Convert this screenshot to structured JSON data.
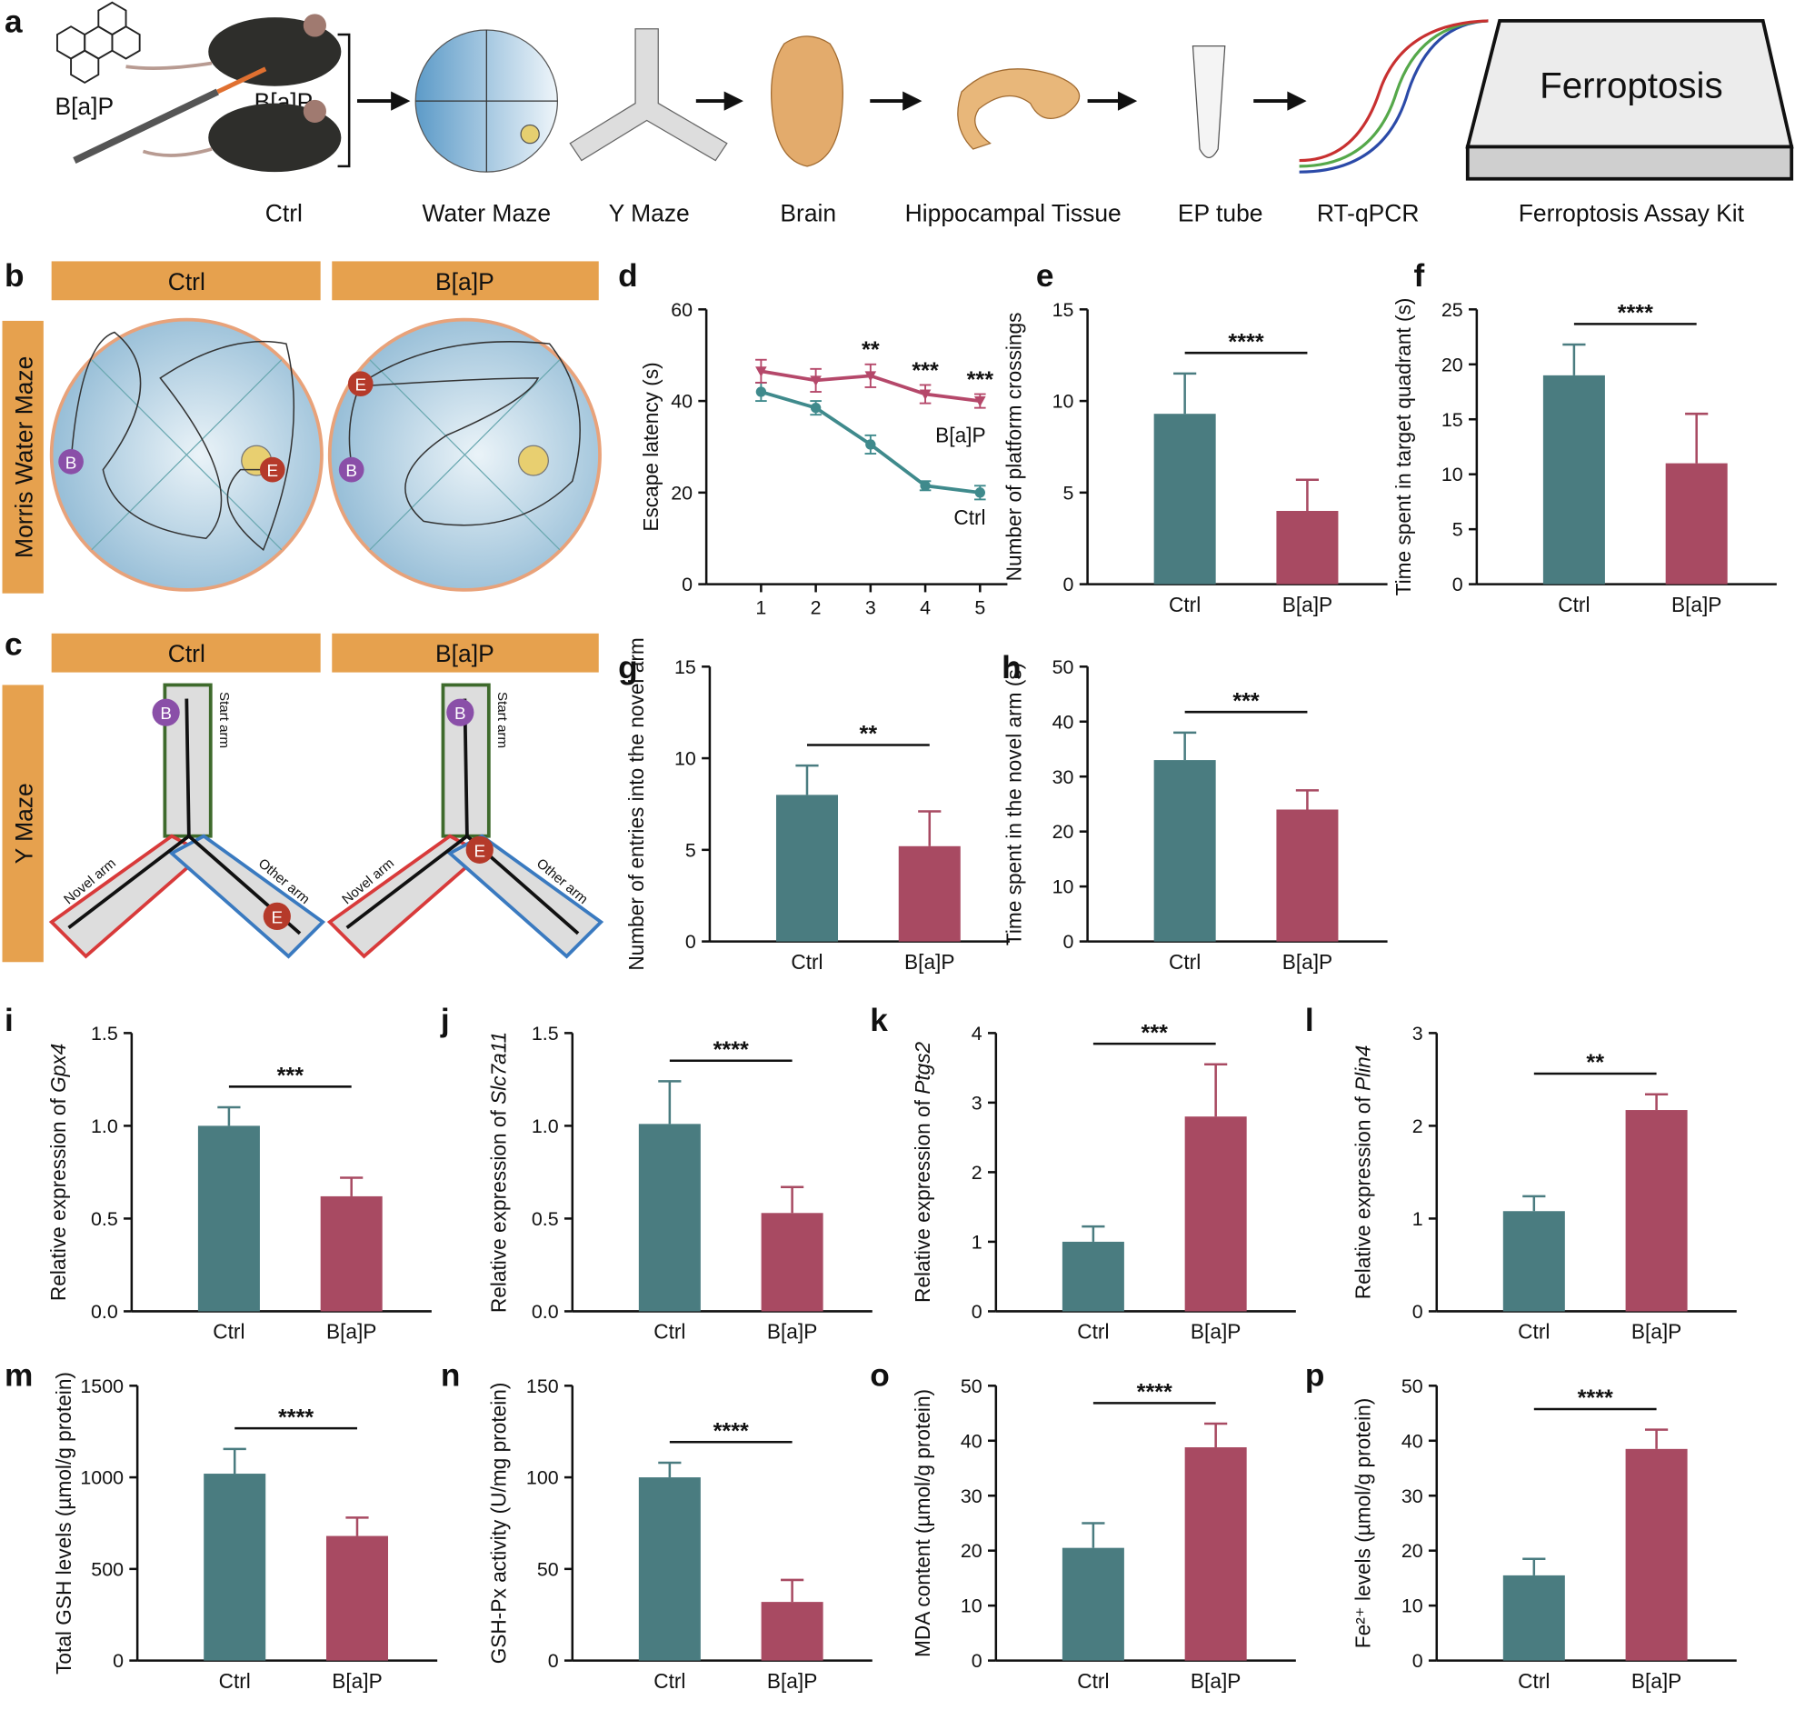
{
  "workflow": {
    "label": "a",
    "drug": "B[a]P",
    "steps": [
      "Ctrl",
      "Water Maze",
      "Y Maze",
      "Brain",
      "Hippocampal Tissue",
      "EP tube",
      "RT-qPCR",
      "Ferroptosis Assay Kit"
    ],
    "box_title": "Ferroptosis"
  },
  "water_maze": {
    "label": "b",
    "groups": [
      "Ctrl",
      "B[a]P"
    ],
    "side": "Morris Water Maze",
    "begin": "B",
    "end": "E"
  },
  "y_maze": {
    "label": "c",
    "groups": [
      "Ctrl",
      "B[a]P"
    ],
    "side": "Y Maze",
    "begin": "B",
    "end": "E",
    "arms": [
      "Start arm",
      "Novel arm",
      "Other arm"
    ]
  },
  "chart_data": [
    {
      "type": "line",
      "label": "d",
      "ylabel": "Escape latency (s)",
      "x": [
        1,
        2,
        3,
        4,
        5
      ],
      "xlim": [
        0,
        5.5
      ],
      "xticks": [
        1,
        2,
        3,
        4,
        5
      ],
      "ylim": [
        0,
        60
      ],
      "yticks": [
        0,
        20,
        40,
        60
      ],
      "series": [
        {
          "name": "Ctrl",
          "color": "#3f8a8c",
          "marker": "circle",
          "values": [
            42,
            38.5,
            30.5,
            21.5,
            20
          ],
          "errors": [
            2,
            1.5,
            2,
            1,
            1.5
          ]
        },
        {
          "name": "B[a]P",
          "color": "#b5486a",
          "marker": "triangle",
          "values": [
            46.5,
            44.5,
            45.5,
            41.5,
            40
          ],
          "errors": [
            2.5,
            2.5,
            2.5,
            2,
            1.5
          ]
        }
      ],
      "annotations": [
        {
          "x": 3,
          "text": "**"
        },
        {
          "x": 4,
          "text": "***"
        },
        {
          "x": 5,
          "text": "***"
        }
      ]
    },
    {
      "type": "bar",
      "label": "e",
      "ylabel": "Number of platform crossings",
      "categories": [
        "Ctrl",
        "B[a]P"
      ],
      "values": [
        9.3,
        4
      ],
      "errors": [
        2.2,
        1.7
      ],
      "colors": [
        "#4a7c80",
        "#a84a62"
      ],
      "ylim": [
        0,
        15
      ],
      "yticks": [
        0,
        5,
        10,
        15
      ],
      "significance": "****"
    },
    {
      "type": "bar",
      "label": "f",
      "ylabel": "Time spent in target quadrant (s)",
      "categories": [
        "Ctrl",
        "B[a]P"
      ],
      "values": [
        19,
        11
      ],
      "errors": [
        2.8,
        4.5
      ],
      "colors": [
        "#4a7c80",
        "#a84a62"
      ],
      "ylim": [
        0,
        25
      ],
      "yticks": [
        0,
        5,
        10,
        15,
        20,
        25
      ],
      "significance": "****"
    },
    {
      "type": "bar",
      "label": "g",
      "ylabel": "Number of entries into the novel arm",
      "categories": [
        "Ctrl",
        "B[a]P"
      ],
      "values": [
        8,
        5.2
      ],
      "errors": [
        1.6,
        1.9
      ],
      "colors": [
        "#4a7c80",
        "#a84a62"
      ],
      "ylim": [
        0,
        15
      ],
      "yticks": [
        0,
        5,
        10,
        15
      ],
      "significance": "**"
    },
    {
      "type": "bar",
      "label": "h",
      "ylabel": "Time spent in the novel arm (s)",
      "categories": [
        "Ctrl",
        "B[a]P"
      ],
      "values": [
        33,
        24
      ],
      "errors": [
        5,
        3.5
      ],
      "colors": [
        "#4a7c80",
        "#a84a62"
      ],
      "ylim": [
        0,
        50
      ],
      "yticks": [
        0,
        10,
        20,
        30,
        40,
        50
      ],
      "significance": "***"
    },
    {
      "type": "bar",
      "label": "i",
      "ylabel": "Relative expression of",
      "ylabel_gene": "Gpx4",
      "categories": [
        "Ctrl",
        "B[a]P"
      ],
      "values": [
        1.0,
        0.62
      ],
      "errors": [
        0.1,
        0.1
      ],
      "colors": [
        "#4a7c80",
        "#a84a62"
      ],
      "ylim": [
        0,
        1.5
      ],
      "yticks": [
        {
          "value": 0,
          "label": "0.0"
        },
        0.5,
        {
          "value": 1,
          "label": "1.0"
        },
        1.5
      ],
      "significance": "***"
    },
    {
      "type": "bar",
      "label": "j",
      "ylabel": "Relative expression of",
      "ylabel_gene": "Slc7a11",
      "categories": [
        "Ctrl",
        "B[a]P"
      ],
      "values": [
        1.01,
        0.53
      ],
      "errors": [
        0.23,
        0.14
      ],
      "colors": [
        "#4a7c80",
        "#a84a62"
      ],
      "ylim": [
        0,
        1.5
      ],
      "yticks": [
        {
          "value": 0,
          "label": "0.0"
        },
        0.5,
        {
          "value": 1,
          "label": "1.0"
        },
        1.5
      ],
      "significance": "****"
    },
    {
      "type": "bar",
      "label": "k",
      "ylabel": "Relative expression of",
      "ylabel_gene": "Ptgs2",
      "categories": [
        "Ctrl",
        "B[a]P"
      ],
      "values": [
        1.0,
        2.8
      ],
      "errors": [
        0.22,
        0.75
      ],
      "colors": [
        "#4a7c80",
        "#a84a62"
      ],
      "ylim": [
        0,
        4
      ],
      "yticks": [
        0,
        1,
        2,
        3,
        4
      ],
      "significance": "***"
    },
    {
      "type": "bar",
      "label": "l",
      "ylabel": "Relative expression of",
      "ylabel_gene": "Plin4",
      "categories": [
        "Ctrl",
        "B[a]P"
      ],
      "values": [
        1.08,
        2.17
      ],
      "errors": [
        0.16,
        0.17
      ],
      "colors": [
        "#4a7c80",
        "#a84a62"
      ],
      "ylim": [
        0,
        3
      ],
      "yticks": [
        0,
        1,
        2,
        3
      ],
      "significance": "**"
    },
    {
      "type": "bar",
      "label": "m",
      "ylabel": "Total GSH levels (µmol/g protein)",
      "categories": [
        "Ctrl",
        "B[a]P"
      ],
      "values": [
        1020,
        680
      ],
      "errors": [
        135,
        100
      ],
      "colors": [
        "#4a7c80",
        "#a84a62"
      ],
      "ylim": [
        0,
        1500
      ],
      "yticks": [
        0,
        500,
        1000,
        1500
      ],
      "significance": "****"
    },
    {
      "type": "bar",
      "label": "n",
      "ylabel": "GSH-Px activity (U/mg protein)",
      "categories": [
        "Ctrl",
        "B[a]P"
      ],
      "values": [
        100,
        32
      ],
      "errors": [
        8,
        12
      ],
      "colors": [
        "#4a7c80",
        "#a84a62"
      ],
      "ylim": [
        0,
        150
      ],
      "yticks": [
        0,
        50,
        100,
        150
      ],
      "significance": "****"
    },
    {
      "type": "bar",
      "label": "o",
      "ylabel": "MDA content (µmol/g protein)",
      "categories": [
        "Ctrl",
        "B[a]P"
      ],
      "values": [
        20.5,
        38.8
      ],
      "errors": [
        4.5,
        4.3
      ],
      "colors": [
        "#4a7c80",
        "#a84a62"
      ],
      "ylim": [
        0,
        50
      ],
      "yticks": [
        0,
        10,
        20,
        30,
        40,
        50
      ],
      "significance": "****"
    },
    {
      "type": "bar",
      "label": "p",
      "ylabel": "Fe²⁺ levels (µmol/g protein)",
      "categories": [
        "Ctrl",
        "B[a]P"
      ],
      "values": [
        15.5,
        38.5
      ],
      "errors": [
        3,
        3.5
      ],
      "colors": [
        "#4a7c80",
        "#a84a62"
      ],
      "ylim": [
        0,
        50
      ],
      "yticks": [
        0,
        10,
        20,
        30,
        40,
        50
      ],
      "significance": "****"
    }
  ]
}
